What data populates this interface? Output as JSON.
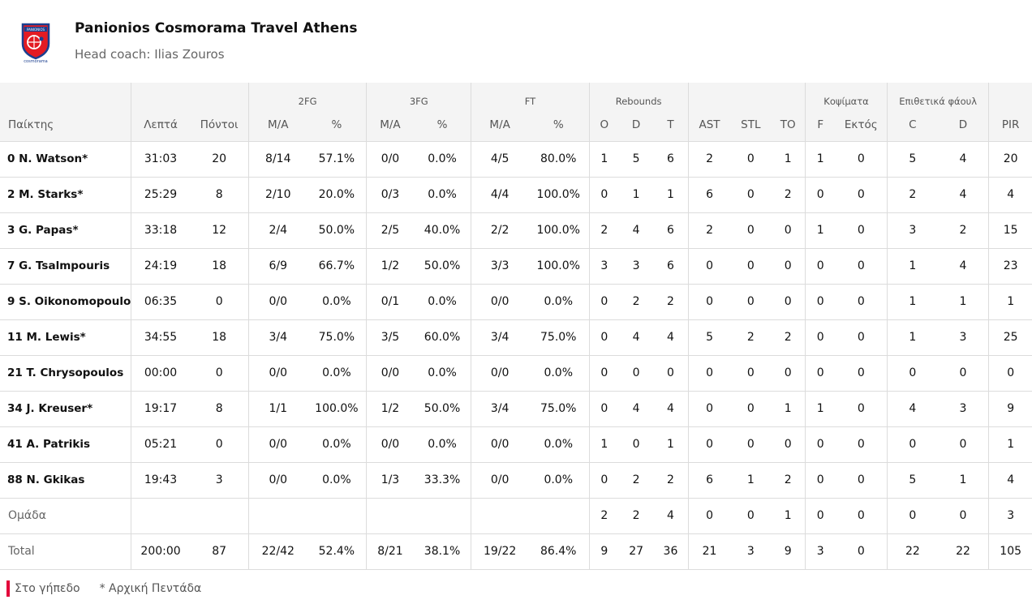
{
  "team": {
    "name": "Panionios Cosmorama Travel Athens",
    "coach_label": "Head coach:",
    "coach_name": "Ilias Zouros",
    "logo_text": "PANIONIOS",
    "logo_brand": "cosmorama"
  },
  "groups": {
    "fg2": "2FG",
    "fg3": "3FG",
    "ft": "FT",
    "reb": "Rebounds",
    "blk": "Κοψίματα",
    "fouls": "Επιθετικά φάουλ"
  },
  "columns": {
    "player": "Παίκτης",
    "min": "Λεπτά",
    "pts": "Πόντοι",
    "fg2_ma": "M/A",
    "fg2_pct": "%",
    "fg3_ma": "M/A",
    "fg3_pct": "%",
    "ft_ma": "M/A",
    "ft_pct": "%",
    "reb_o": "O",
    "reb_d": "D",
    "reb_t": "T",
    "ast": "AST",
    "stl": "STL",
    "to": "TO",
    "blk_f": "F",
    "blk_ag": "Εκτός",
    "foul_c": "C",
    "foul_d": "D",
    "pir": "PIR"
  },
  "rows": [
    [
      "0 N. Watson*",
      "31:03",
      "20",
      "8/14",
      "57.1%",
      "0/0",
      "0.0%",
      "4/5",
      "80.0%",
      "1",
      "5",
      "6",
      "2",
      "0",
      "1",
      "1",
      "0",
      "5",
      "4",
      "20"
    ],
    [
      "2 M. Starks*",
      "25:29",
      "8",
      "2/10",
      "20.0%",
      "0/3",
      "0.0%",
      "4/4",
      "100.0%",
      "0",
      "1",
      "1",
      "6",
      "0",
      "2",
      "0",
      "0",
      "2",
      "4",
      "4"
    ],
    [
      "3 G. Papas*",
      "33:18",
      "12",
      "2/4",
      "50.0%",
      "2/5",
      "40.0%",
      "2/2",
      "100.0%",
      "2",
      "4",
      "6",
      "2",
      "0",
      "0",
      "1",
      "0",
      "3",
      "2",
      "15"
    ],
    [
      "7 G. Tsalmpouris",
      "24:19",
      "18",
      "6/9",
      "66.7%",
      "1/2",
      "50.0%",
      "3/3",
      "100.0%",
      "3",
      "3",
      "6",
      "0",
      "0",
      "0",
      "0",
      "0",
      "1",
      "4",
      "23"
    ],
    [
      "9 S. Oikonomopoulos",
      "06:35",
      "0",
      "0/0",
      "0.0%",
      "0/1",
      "0.0%",
      "0/0",
      "0.0%",
      "0",
      "2",
      "2",
      "0",
      "0",
      "0",
      "0",
      "0",
      "1",
      "1",
      "1"
    ],
    [
      "11 M. Lewis*",
      "34:55",
      "18",
      "3/4",
      "75.0%",
      "3/5",
      "60.0%",
      "3/4",
      "75.0%",
      "0",
      "4",
      "4",
      "5",
      "2",
      "2",
      "0",
      "0",
      "1",
      "3",
      "25"
    ],
    [
      "21 T. Chrysopoulos",
      "00:00",
      "0",
      "0/0",
      "0.0%",
      "0/0",
      "0.0%",
      "0/0",
      "0.0%",
      "0",
      "0",
      "0",
      "0",
      "0",
      "0",
      "0",
      "0",
      "0",
      "0",
      "0"
    ],
    [
      "34 J. Kreuser*",
      "19:17",
      "8",
      "1/1",
      "100.0%",
      "1/2",
      "50.0%",
      "3/4",
      "75.0%",
      "0",
      "4",
      "4",
      "0",
      "0",
      "1",
      "1",
      "0",
      "4",
      "3",
      "9"
    ],
    [
      "41 A. Patrikis",
      "05:21",
      "0",
      "0/0",
      "0.0%",
      "0/0",
      "0.0%",
      "0/0",
      "0.0%",
      "1",
      "0",
      "1",
      "0",
      "0",
      "0",
      "0",
      "0",
      "0",
      "0",
      "1"
    ],
    [
      "88 N. Gkikas",
      "19:43",
      "3",
      "0/0",
      "0.0%",
      "1/3",
      "33.3%",
      "0/0",
      "0.0%",
      "0",
      "2",
      "2",
      "6",
      "1",
      "2",
      "0",
      "0",
      "5",
      "1",
      "4"
    ]
  ],
  "team_row": [
    "Ομάδα",
    "",
    "",
    "",
    "",
    "",
    "",
    "",
    "",
    "2",
    "2",
    "4",
    "0",
    "0",
    "1",
    "0",
    "0",
    "0",
    "0",
    "3"
  ],
  "total_row": [
    "Total",
    "200:00",
    "87",
    "22/42",
    "52.4%",
    "8/21",
    "38.1%",
    "19/22",
    "86.4%",
    "9",
    "27",
    "36",
    "21",
    "3",
    "9",
    "3",
    "0",
    "22",
    "22",
    "105"
  ],
  "legend": {
    "on_court": "Στο γήπεδο",
    "starter": "* Αρχική Πεντάδα"
  },
  "colors": {
    "on_court_marker": "#e3003a",
    "header_bg": "#f4f4f4"
  }
}
